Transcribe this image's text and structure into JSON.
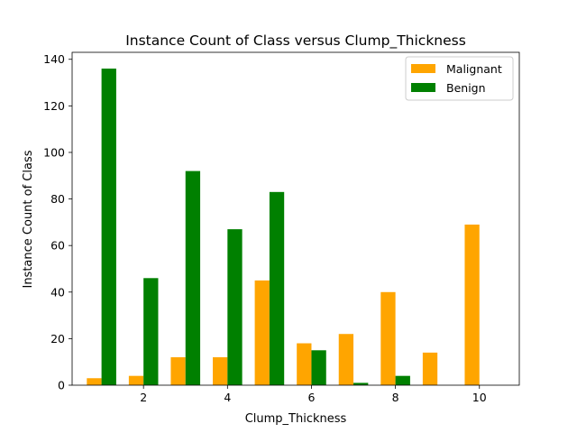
{
  "chart_data": {
    "type": "bar",
    "title": "Instance Count of Class versus Clump_Thickness",
    "xlabel": "Clump_Thickness",
    "ylabel": "Instance Count of Class",
    "x": [
      1,
      2,
      3,
      4,
      5,
      6,
      7,
      8,
      9,
      10
    ],
    "xlim": [
      0.3,
      10.95
    ],
    "ylim": [
      0,
      143
    ],
    "xticks": [
      2,
      4,
      6,
      8,
      10
    ],
    "yticks": [
      0,
      20,
      40,
      60,
      80,
      100,
      120,
      140
    ],
    "bar_width": 0.35,
    "grid": false,
    "legend_position": "top-right",
    "series": [
      {
        "name": "Malignant",
        "color": "#FFA500",
        "offset": -0.175,
        "values": [
          3,
          4,
          12,
          12,
          45,
          18,
          22,
          40,
          14,
          69
        ]
      },
      {
        "name": "Benign",
        "color": "#008000",
        "offset": 0.175,
        "values": [
          136,
          46,
          92,
          67,
          83,
          15,
          1,
          4,
          0,
          0
        ]
      }
    ]
  }
}
